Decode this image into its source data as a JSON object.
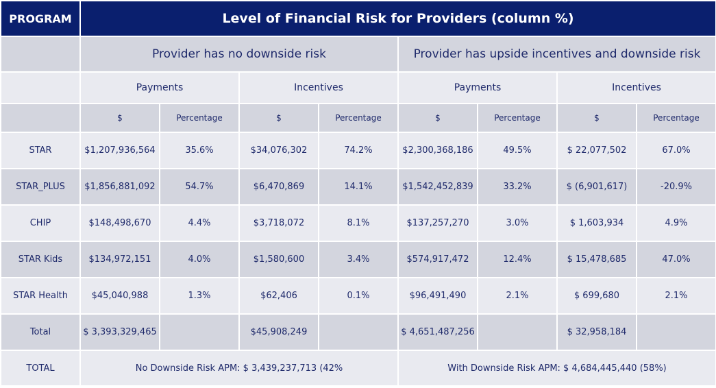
{
  "header": {
    "program_label": "PROGRAM",
    "title": "Level of Financial Risk for Providers (column %)"
  },
  "groups": {
    "no_downside": "Provider has no downside risk",
    "with_downside": "Provider has upside incentives and downside risk"
  },
  "subgroups": [
    "Payments",
    "Incentives",
    "Payments",
    "Incentives"
  ],
  "columns": [
    "$",
    "Percentage",
    "$",
    "Percentage",
    "$",
    "Percentage",
    "$",
    "Percentage"
  ],
  "rows": [
    {
      "program": "STAR",
      "cells": [
        "$1,207,936,564",
        "35.6%",
        "$34,076,302",
        "74.2%",
        "$2,300,368,186",
        "49.5%",
        "$ 22,077,502",
        "67.0%"
      ]
    },
    {
      "program": "STAR_PLUS",
      "cells": [
        "$1,856,881,092",
        "54.7%",
        "$6,470,869",
        "14.1%",
        "$1,542,452,839",
        "33.2%",
        "$ (6,901,617)",
        "-20.9%"
      ]
    },
    {
      "program": "CHIP",
      "cells": [
        "$148,498,670",
        "4.4%",
        "$3,718,072",
        "8.1%",
        "$137,257,270",
        "3.0%",
        "$ 1,603,934",
        "4.9%"
      ]
    },
    {
      "program": "STAR Kids",
      "cells": [
        "$134,972,151",
        "4.0%",
        "$1,580,600",
        "3.4%",
        "$574,917,472",
        "12.4%",
        "$ 15,478,685",
        "47.0%"
      ]
    },
    {
      "program": "STAR Health",
      "cells": [
        "$45,040,988",
        "1.3%",
        "$62,406",
        "0.1%",
        "$96,491,490",
        "2.1%",
        "$ 699,680",
        "2.1%"
      ]
    },
    {
      "program": "Total",
      "cells": [
        "$ 3,393,329,465",
        "",
        "$45,908,249",
        "",
        "$ 4,651,487,256",
        "",
        "$ 32,958,184",
        ""
      ]
    }
  ],
  "total": {
    "label": "TOTAL",
    "no_downside": "No Downside Risk APM: $ 3,439,237,713 (42%",
    "with_downside": "With Downside Risk APM: $ 4,684,445,440 (58%)"
  }
}
